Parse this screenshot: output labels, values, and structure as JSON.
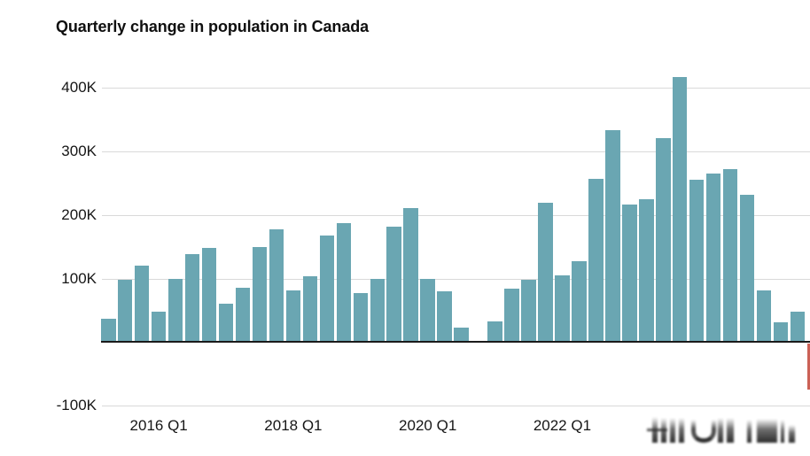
{
  "chart_data": {
    "type": "bar",
    "title": "Quarterly change in population in Canada",
    "value_unit": "thousands of people (K)",
    "categories": [
      "2015 Q2",
      "2015 Q3",
      "2015 Q4",
      "2016 Q1",
      "2016 Q2",
      "2016 Q3",
      "2016 Q4",
      "2017 Q1",
      "2017 Q2",
      "2017 Q3",
      "2017 Q4",
      "2018 Q1",
      "2018 Q2",
      "2018 Q3",
      "2018 Q4",
      "2019 Q1",
      "2019 Q2",
      "2019 Q3",
      "2019 Q4",
      "2020 Q1",
      "2020 Q2",
      "2020 Q3",
      "2020 Q4",
      "2021 Q1",
      "2021 Q2",
      "2021 Q3",
      "2021 Q4",
      "2022 Q1",
      "2022 Q2",
      "2022 Q3",
      "2022 Q4",
      "2023 Q1",
      "2023 Q2",
      "2023 Q3",
      "2023 Q4",
      "2024 Q1",
      "2024 Q2",
      "2024 Q3",
      "2024 Q4",
      "2025 Q1",
      "2025 Q2",
      "2025 Q3",
      "2025 Q4"
    ],
    "values": [
      37,
      98,
      120,
      48,
      99,
      139,
      148,
      61,
      86,
      150,
      178,
      82,
      104,
      168,
      187,
      77,
      100,
      182,
      211,
      100,
      80,
      23,
      0,
      33,
      84,
      98,
      219,
      105,
      127,
      257,
      334,
      217,
      225,
      321,
      417,
      256,
      265,
      272,
      232,
      82,
      32,
      48,
      -75
    ],
    "xlabel": "",
    "ylabel": "",
    "ylim_k": [
      -100,
      430
    ],
    "grid": true,
    "legend": false,
    "y_ticks": [
      {
        "label": "400K",
        "value": 400
      },
      {
        "label": "300K",
        "value": 300
      },
      {
        "label": "200K",
        "value": 200
      },
      {
        "label": "100K",
        "value": 100
      },
      {
        "label": "-100K",
        "value": -100
      }
    ],
    "x_ticks": [
      {
        "label": "2016 Q1",
        "index": 3
      },
      {
        "label": "2018 Q1",
        "index": 11
      },
      {
        "label": "2020 Q1",
        "index": 19
      },
      {
        "label": "2022 Q1",
        "index": 27
      }
    ],
    "bar_colors": {
      "positive": "#6AA6B2",
      "negative": "#CB6156"
    },
    "zero_axis_color": "#1A1A1A",
    "gridline_color": "#D9D9D9",
    "text_color": "#161616",
    "note": "last bar (negative, red) is clipped by the right edge of the image"
  },
  "watermark": {
    "legible": false,
    "description": "blurred illegible dark watermark marks at bottom right"
  }
}
